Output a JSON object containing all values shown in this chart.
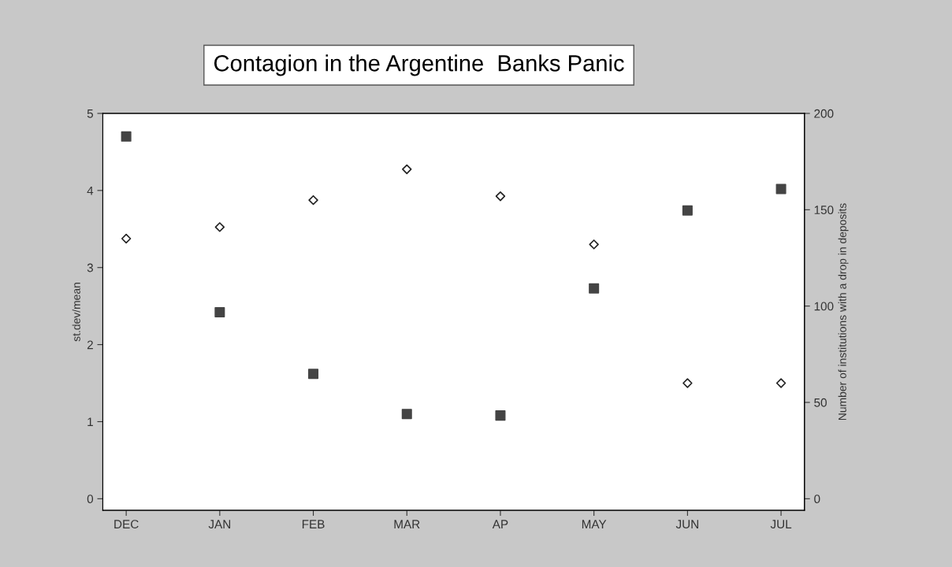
{
  "chart_data": {
    "type": "scatter",
    "title": "Contagion in the Argentine  Banks Panic",
    "categories": [
      "DEC",
      "JAN",
      "FEB",
      "MAR",
      "AP",
      "MAY",
      "JUN",
      "JUL"
    ],
    "ylabel": "st.dev/mean",
    "y2label": "Number of institutions with a drop in deposits",
    "series": [
      {
        "color": "#444444",
        "marker": "square",
        "values": [
          4.7,
          2.42,
          1.62,
          1.1,
          1.08,
          2.73,
          3.74,
          4.02
        ]
      },
      {
        "color": "#222222",
        "marker": "diamond",
        "axis": "y2",
        "values": [
          135,
          141,
          155,
          171,
          157,
          132,
          60,
          60
        ]
      }
    ],
    "ylim": [
      -0.15,
      5
    ],
    "yticks": [
      0,
      1,
      2,
      3,
      4,
      5
    ],
    "y2lim": [
      -6,
      200
    ],
    "y2ticks": [
      0,
      50,
      100,
      150,
      200
    ],
    "grid": false
  }
}
